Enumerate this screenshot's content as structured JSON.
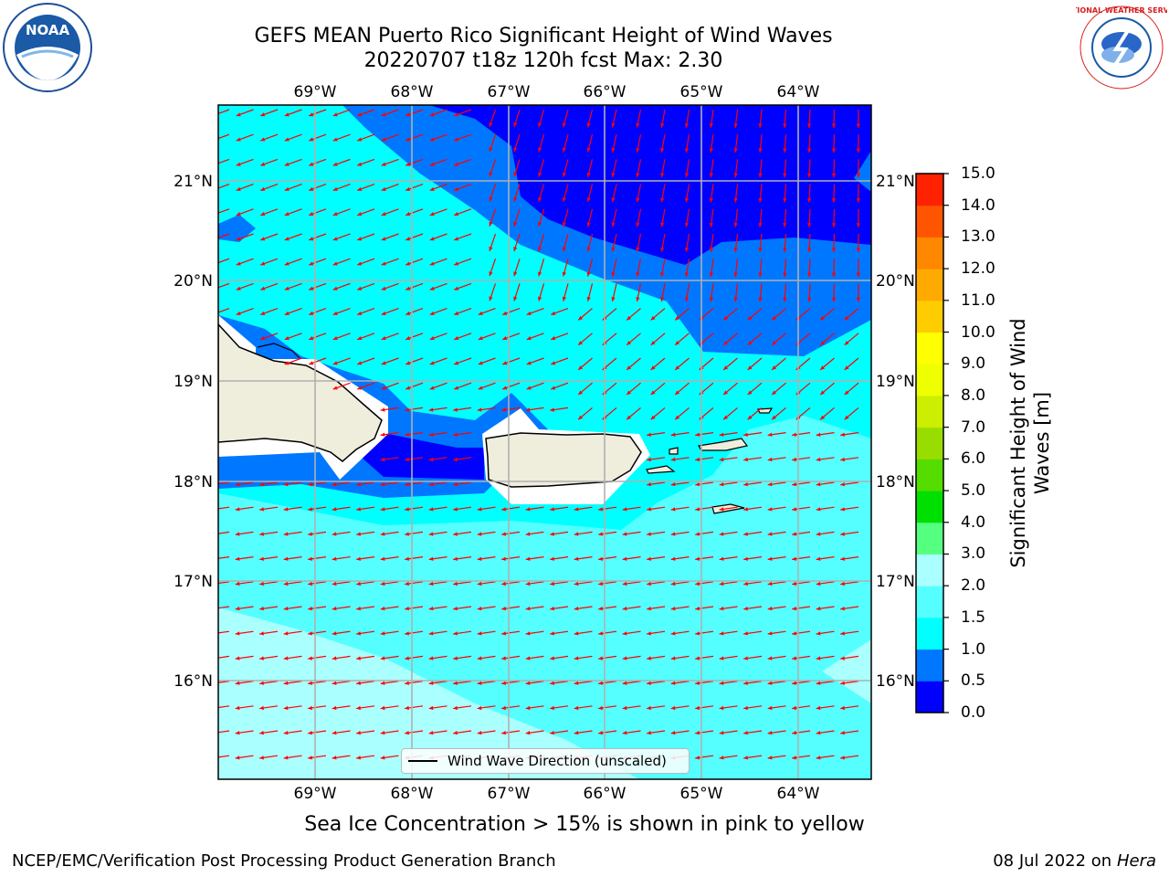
{
  "header": {
    "title_line1": "GEFS MEAN Puerto Rico Significant Height of Wind Waves",
    "title_line2": "20220707 t18z 120h fcst   Max: 2.30"
  },
  "map": {
    "lon_ticks": [
      "69°W",
      "68°W",
      "67°W",
      "66°W",
      "65°W",
      "64°W"
    ],
    "lat_ticks": [
      "21°N",
      "20°N",
      "19°N",
      "18°N",
      "17°N",
      "16°N"
    ],
    "legend_label": "Wind Wave Direction (unscaled)",
    "arrow_color": "#ff0000",
    "land_color": "#efeddc"
  },
  "colorbar": {
    "title": "Significant Height of Wind Waves [m]",
    "levels": [
      "0.0",
      "0.5",
      "1.0",
      "1.5",
      "2.0",
      "3.0",
      "4.0",
      "5.0",
      "6.0",
      "7.0",
      "8.0",
      "9.0",
      "10.0",
      "11.0",
      "12.0",
      "13.0",
      "14.0",
      "15.0"
    ],
    "colors": [
      "#0000ff",
      "#0077ff",
      "#00ffff",
      "#55ffff",
      "#aaffff",
      "#55ff80",
      "#00e000",
      "#55dd00",
      "#99dd00",
      "#ccee00",
      "#eeff00",
      "#ffff00",
      "#ffcc00",
      "#ffaa00",
      "#ff8800",
      "#ff5500",
      "#ff2200"
    ]
  },
  "footer": {
    "note": "Sea Ice Concentration > 15% is shown in pink to yellow",
    "left": "NCEP/EMC/Verification Post Processing Product Generation Branch",
    "right_date": "08 Jul 2022 on ",
    "right_host": "Hera"
  },
  "logos": {
    "noaa_text": "NOAA",
    "nws_text": "NATIONAL WEATHER SERVICE"
  }
}
